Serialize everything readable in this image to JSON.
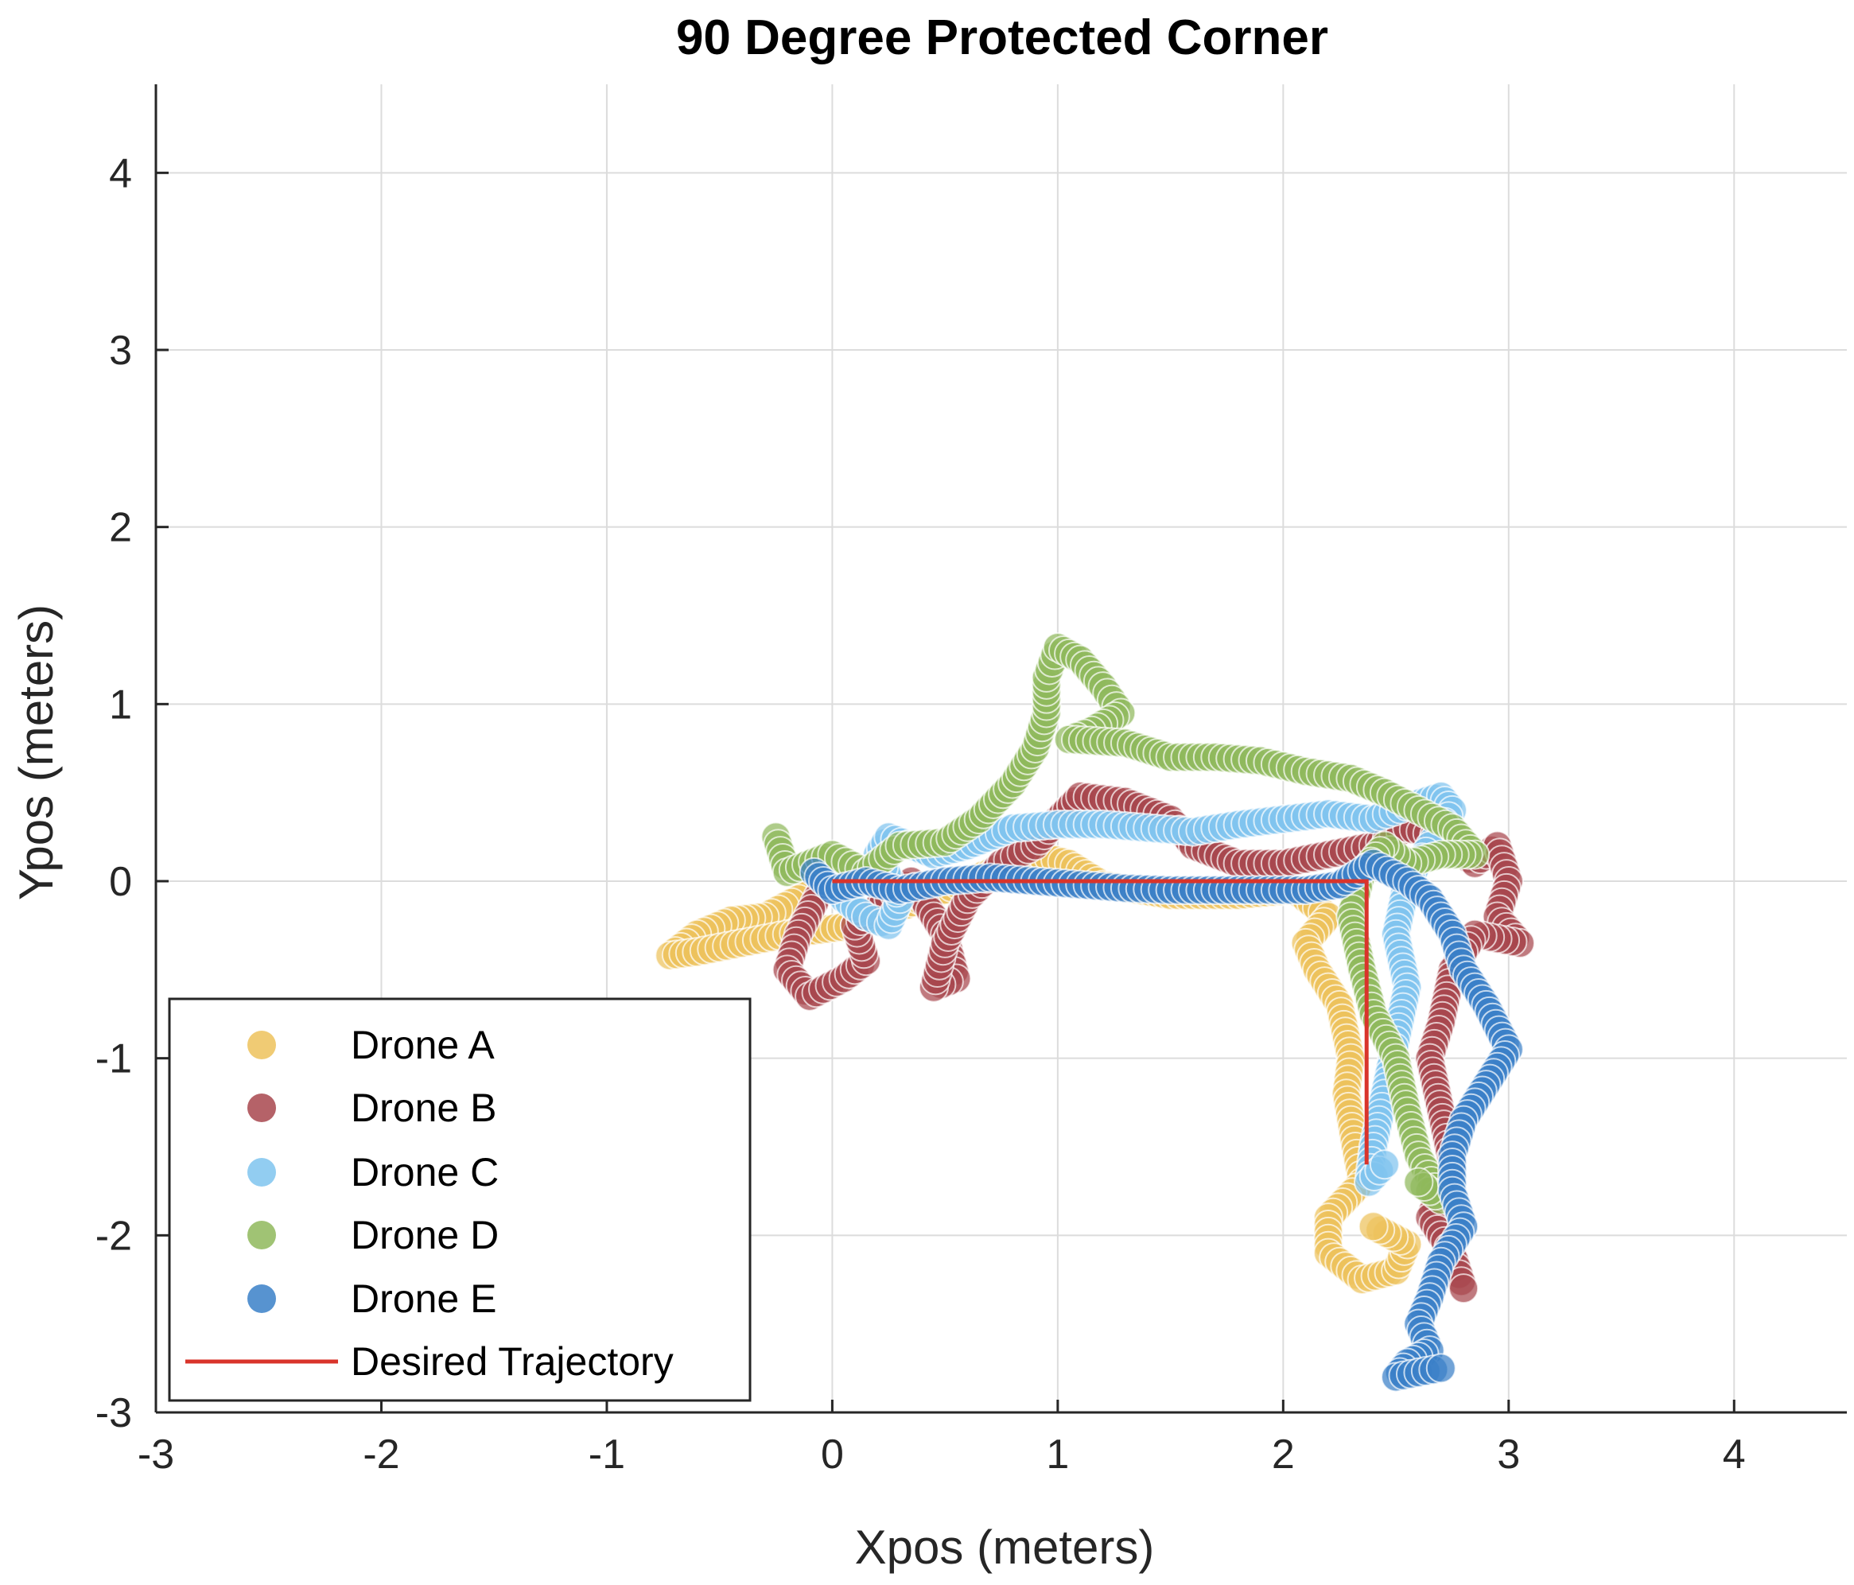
{
  "chart_data": {
    "type": "scatter",
    "title": "90 Degree Protected Corner",
    "xlabel": "Xpos (meters)",
    "ylabel": "Ypos (meters)",
    "xlim": [
      -3,
      4.5
    ],
    "ylim": [
      -3,
      4.5
    ],
    "xticks": [
      -3,
      -2,
      -1,
      0,
      1,
      2,
      3,
      4
    ],
    "yticks": [
      -3,
      -2,
      -1,
      0,
      1,
      2,
      3,
      4
    ],
    "grid": true,
    "legend_position": "bottom-left",
    "series": [
      {
        "name": "Drone A",
        "color": "#edc25c",
        "path": [
          [
            0,
            0
          ],
          [
            -0.15,
            -0.1
          ],
          [
            -0.3,
            -0.2
          ],
          [
            -0.45,
            -0.22
          ],
          [
            -0.6,
            -0.3
          ],
          [
            -0.72,
            -0.42
          ],
          [
            -0.6,
            -0.4
          ],
          [
            -0.4,
            -0.35
          ],
          [
            -0.2,
            -0.3
          ],
          [
            0.1,
            -0.25
          ],
          [
            0.3,
            -0.15
          ],
          [
            0.5,
            -0.05
          ],
          [
            0.7,
            0.05
          ],
          [
            0.9,
            0.15
          ],
          [
            1.05,
            0.1
          ],
          [
            1.2,
            -0.02
          ],
          [
            1.5,
            -0.08
          ],
          [
            1.8,
            -0.08
          ],
          [
            2.05,
            -0.05
          ],
          [
            2.2,
            -0.2
          ],
          [
            2.1,
            -0.35
          ],
          [
            2.15,
            -0.5
          ],
          [
            2.25,
            -0.7
          ],
          [
            2.3,
            -1.0
          ],
          [
            2.28,
            -1.2
          ],
          [
            2.32,
            -1.5
          ],
          [
            2.35,
            -1.7
          ],
          [
            2.2,
            -1.9
          ],
          [
            2.2,
            -2.1
          ],
          [
            2.35,
            -2.25
          ],
          [
            2.5,
            -2.2
          ],
          [
            2.55,
            -2.05
          ],
          [
            2.4,
            -1.95
          ]
        ]
      },
      {
        "name": "Drone B",
        "color": "#a8474e",
        "path": [
          [
            -0.05,
            -0.05
          ],
          [
            -0.15,
            -0.3
          ],
          [
            -0.2,
            -0.5
          ],
          [
            -0.1,
            -0.65
          ],
          [
            0.05,
            -0.55
          ],
          [
            0.15,
            -0.45
          ],
          [
            0.1,
            -0.25
          ],
          [
            0.25,
            -0.1
          ],
          [
            0.35,
            0.0
          ],
          [
            0.5,
            -0.3
          ],
          [
            0.55,
            -0.55
          ],
          [
            0.45,
            -0.6
          ],
          [
            0.5,
            -0.35
          ],
          [
            0.6,
            -0.1
          ],
          [
            0.75,
            0.1
          ],
          [
            0.9,
            0.2
          ],
          [
            1.0,
            0.35
          ],
          [
            1.1,
            0.48
          ],
          [
            1.3,
            0.45
          ],
          [
            1.5,
            0.35
          ],
          [
            1.6,
            0.2
          ],
          [
            1.8,
            0.1
          ],
          [
            2.0,
            0.1
          ],
          [
            2.2,
            0.15
          ],
          [
            2.4,
            0.2
          ],
          [
            2.55,
            0.3
          ],
          [
            2.7,
            0.25
          ],
          [
            2.85,
            0.1
          ],
          [
            2.95,
            0.2
          ],
          [
            3.0,
            0.0
          ],
          [
            2.95,
            -0.2
          ],
          [
            3.05,
            -0.35
          ],
          [
            2.85,
            -0.3
          ],
          [
            2.75,
            -0.5
          ],
          [
            2.7,
            -0.8
          ],
          [
            2.65,
            -1.0
          ],
          [
            2.7,
            -1.3
          ],
          [
            2.75,
            -1.6
          ],
          [
            2.65,
            -1.9
          ],
          [
            2.75,
            -2.1
          ],
          [
            2.8,
            -2.3
          ]
        ]
      },
      {
        "name": "Drone C",
        "color": "#7fc4ef",
        "path": [
          [
            -0.05,
            0.05
          ],
          [
            0.05,
            -0.1
          ],
          [
            0.15,
            -0.2
          ],
          [
            0.25,
            -0.25
          ],
          [
            0.3,
            -0.1
          ],
          [
            0.2,
            0.15
          ],
          [
            0.25,
            0.25
          ],
          [
            0.45,
            0.15
          ],
          [
            0.6,
            0.2
          ],
          [
            0.8,
            0.3
          ],
          [
            1.0,
            0.32
          ],
          [
            1.2,
            0.32
          ],
          [
            1.4,
            0.3
          ],
          [
            1.6,
            0.28
          ],
          [
            1.8,
            0.32
          ],
          [
            2.0,
            0.35
          ],
          [
            2.2,
            0.38
          ],
          [
            2.4,
            0.35
          ],
          [
            2.55,
            0.42
          ],
          [
            2.7,
            0.48
          ],
          [
            2.75,
            0.4
          ],
          [
            2.65,
            0.2
          ],
          [
            2.55,
            0.0
          ],
          [
            2.5,
            -0.3
          ],
          [
            2.55,
            -0.6
          ],
          [
            2.5,
            -0.9
          ],
          [
            2.45,
            -1.2
          ],
          [
            2.4,
            -1.5
          ],
          [
            2.38,
            -1.7
          ],
          [
            2.45,
            -1.6
          ]
        ]
      },
      {
        "name": "Drone D",
        "color": "#8fb85c",
        "path": [
          [
            -0.25,
            0.25
          ],
          [
            -0.2,
            0.05
          ],
          [
            0.0,
            0.15
          ],
          [
            0.15,
            0.05
          ],
          [
            0.3,
            0.2
          ],
          [
            0.5,
            0.22
          ],
          [
            0.65,
            0.35
          ],
          [
            0.8,
            0.55
          ],
          [
            0.9,
            0.75
          ],
          [
            0.95,
            0.95
          ],
          [
            0.95,
            1.15
          ],
          [
            1.0,
            1.32
          ],
          [
            1.1,
            1.25
          ],
          [
            1.2,
            1.1
          ],
          [
            1.28,
            0.95
          ],
          [
            1.15,
            0.85
          ],
          [
            1.05,
            0.8
          ],
          [
            1.3,
            0.78
          ],
          [
            1.5,
            0.7
          ],
          [
            1.7,
            0.7
          ],
          [
            1.9,
            0.68
          ],
          [
            2.1,
            0.62
          ],
          [
            2.3,
            0.58
          ],
          [
            2.45,
            0.5
          ],
          [
            2.6,
            0.4
          ],
          [
            2.75,
            0.3
          ],
          [
            2.85,
            0.15
          ],
          [
            2.7,
            0.15
          ],
          [
            2.55,
            0.1
          ],
          [
            2.45,
            0.2
          ],
          [
            2.35,
            0.05
          ],
          [
            2.3,
            -0.2
          ],
          [
            2.35,
            -0.5
          ],
          [
            2.4,
            -0.75
          ],
          [
            2.5,
            -1.0
          ],
          [
            2.55,
            -1.3
          ],
          [
            2.6,
            -1.55
          ],
          [
            2.7,
            -1.8
          ],
          [
            2.6,
            -1.7
          ]
        ]
      },
      {
        "name": "Drone E",
        "color": "#3a80c8",
        "path": [
          [
            -0.08,
            0.05
          ],
          [
            0.0,
            -0.05
          ],
          [
            0.15,
            0.0
          ],
          [
            0.3,
            -0.05
          ],
          [
            0.5,
            0.0
          ],
          [
            0.7,
            0.02
          ],
          [
            0.9,
            0.0
          ],
          [
            1.1,
            -0.02
          ],
          [
            1.3,
            -0.04
          ],
          [
            1.5,
            -0.05
          ],
          [
            1.7,
            -0.05
          ],
          [
            1.9,
            -0.05
          ],
          [
            2.1,
            -0.05
          ],
          [
            2.25,
            -0.02
          ],
          [
            2.4,
            0.1
          ],
          [
            2.55,
            0.0
          ],
          [
            2.65,
            -0.1
          ],
          [
            2.75,
            -0.3
          ],
          [
            2.8,
            -0.5
          ],
          [
            2.9,
            -0.7
          ],
          [
            3.0,
            -0.95
          ],
          [
            2.9,
            -1.15
          ],
          [
            2.8,
            -1.35
          ],
          [
            2.75,
            -1.55
          ],
          [
            2.75,
            -1.75
          ],
          [
            2.8,
            -1.95
          ],
          [
            2.7,
            -2.15
          ],
          [
            2.65,
            -2.35
          ],
          [
            2.6,
            -2.5
          ],
          [
            2.65,
            -2.65
          ],
          [
            2.55,
            -2.72
          ],
          [
            2.5,
            -2.8
          ],
          [
            2.7,
            -2.75
          ]
        ]
      },
      {
        "name": "Desired Trajectory",
        "color": "#d9342b",
        "style": "line",
        "x": [
          0,
          2.37,
          2.37
        ],
        "y": [
          0,
          0,
          -1.6
        ]
      }
    ]
  }
}
